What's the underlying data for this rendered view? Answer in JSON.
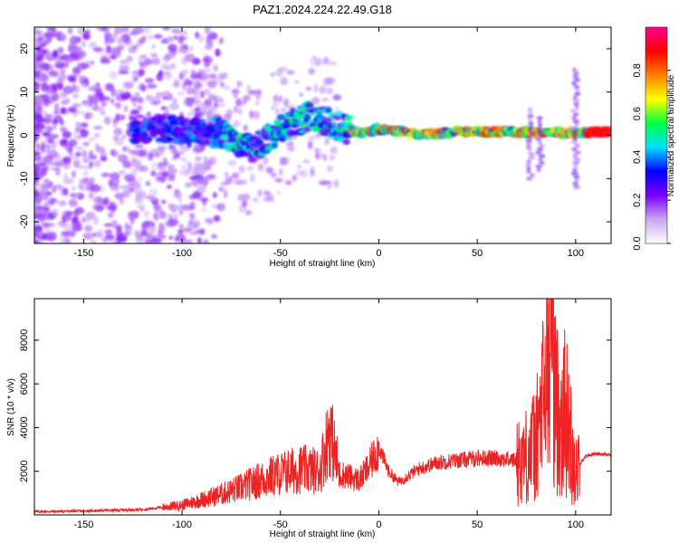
{
  "title": "PAZ1.2024.224.22.49.G18",
  "chart_data": [
    {
      "type": "heatmap",
      "title": "PAZ1.2024.224.22.49.G18",
      "xlabel": "Height of straight line (km)",
      "ylabel": "Frequency (Hz)",
      "xlim": [
        -175,
        118
      ],
      "ylim": [
        -25,
        25
      ],
      "x_ticks": [
        -150,
        -100,
        -50,
        0,
        50,
        100
      ],
      "x_tick_labels": [
        "-150",
        "-100",
        "-50",
        "0",
        "50",
        "100"
      ],
      "y_ticks": [
        -20,
        -10,
        0,
        10,
        20
      ],
      "y_tick_labels": [
        "-20",
        "-10",
        "0",
        "10",
        "20"
      ],
      "colorbar": {
        "label": "Normalized spectral amplitude",
        "range": [
          0,
          1
        ],
        "ticks": [
          0.0,
          0.2,
          0.4,
          0.6,
          0.8
        ],
        "tick_labels": [
          "0.0",
          "0.2",
          "0.4",
          "0.6",
          "0.8"
        ],
        "colors": [
          "#ffffff",
          "#c8a8f0",
          "#7a00ff",
          "#0000ff",
          "#00e0ff",
          "#00ff40",
          "#ffff00",
          "#ff8000",
          "#ff0000",
          "#ff0090"
        ]
      },
      "ridge": {
        "description_points": [
          {
            "x": -120,
            "y": 1.5
          },
          {
            "x": -100,
            "y": 1.0
          },
          {
            "x": -80,
            "y": 0.5
          },
          {
            "x": -65,
            "y": -3.5
          },
          {
            "x": -50,
            "y": 1.5
          },
          {
            "x": -35,
            "y": 4.5
          },
          {
            "x": -20,
            "y": 2.0
          },
          {
            "x": -10,
            "y": 0.5
          },
          {
            "x": 0,
            "y": 1.5
          },
          {
            "x": 20,
            "y": 0.2
          },
          {
            "x": 40,
            "y": 0.8
          },
          {
            "x": 60,
            "y": 0.8
          },
          {
            "x": 80,
            "y": 0.8
          },
          {
            "x": 100,
            "y": 0.5
          },
          {
            "x": 118,
            "y": 0.8
          }
        ]
      }
    },
    {
      "type": "line",
      "xlabel": "Height of straight line (km)",
      "ylabel": "SNR (10 * v/v)",
      "xlim": [
        -175,
        118
      ],
      "ylim": [
        0,
        9900
      ],
      "color": "#ee2222",
      "x_ticks": [
        -150,
        -100,
        -50,
        0,
        50,
        100
      ],
      "x_tick_labels": [
        "-150",
        "-100",
        "-50",
        "0",
        "50",
        "100"
      ],
      "y_ticks": [
        2000,
        4000,
        6000,
        8000
      ],
      "y_tick_labels": [
        "2000",
        "4000",
        "6000",
        "8000"
      ],
      "series": [
        {
          "x": [
            -175,
            -150,
            -120,
            -100,
            -90,
            -80,
            -70,
            -60,
            -50,
            -40,
            -30,
            -25,
            -20,
            -10,
            -5,
            0,
            5,
            10,
            20,
            30,
            40,
            50,
            60,
            70,
            75,
            80,
            85,
            88,
            90,
            95,
            100,
            105,
            110,
            118
          ],
          "y": [
            150,
            180,
            250,
            450,
            700,
            950,
            1250,
            1600,
            1900,
            2100,
            2000,
            3900,
            1900,
            1600,
            2200,
            3100,
            2000,
            1500,
            2100,
            2400,
            2500,
            2600,
            2600,
            2500,
            2700,
            3300,
            6000,
            9700,
            4800,
            4700,
            2000,
            2700,
            2800,
            2750
          ]
        }
      ]
    }
  ]
}
